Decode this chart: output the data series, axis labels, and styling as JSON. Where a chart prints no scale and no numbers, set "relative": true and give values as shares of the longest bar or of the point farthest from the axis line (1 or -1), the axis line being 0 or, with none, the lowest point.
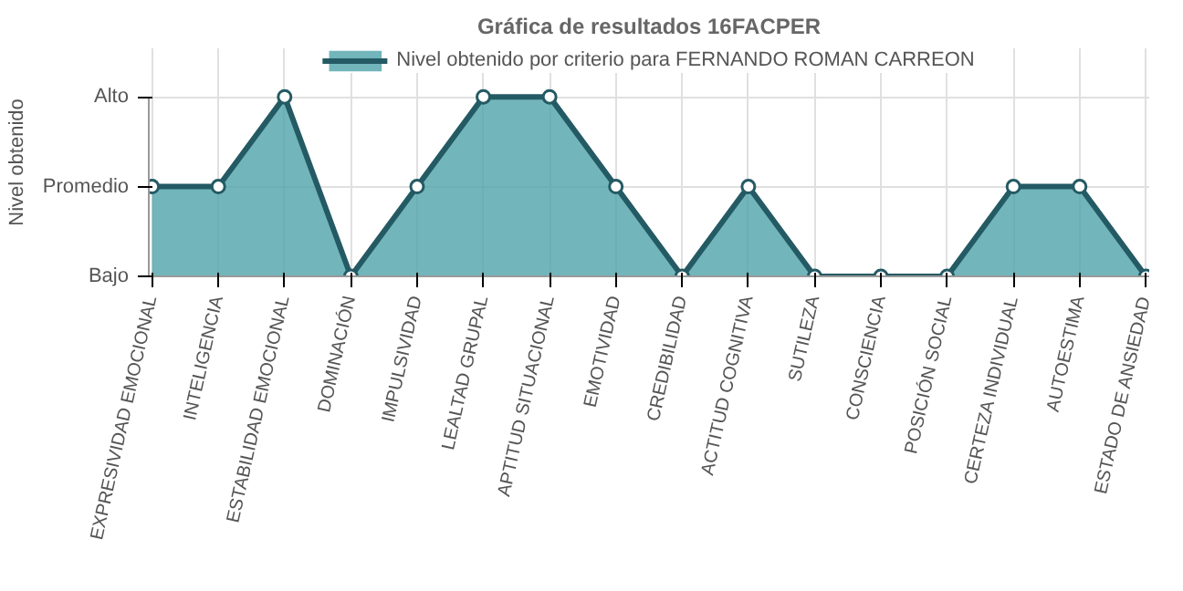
{
  "chart_data": {
    "type": "area",
    "title": "Gráfica de resultados 16FACPER",
    "ylabel": "Nivel obtenido",
    "categories": [
      "EXPRESIVIDAD EMOCIONAL",
      "INTELIGENCIA",
      "ESTABILIDAD EMOCIONAL",
      "DOMINACIÓN",
      "IMPULSIVIDAD",
      "LEALTAD GRUPAL",
      "APTITUD SITUACIONAL",
      "EMOTIVIDAD",
      "CREDIBILIDAD",
      "ACTITUD COGNITIVA",
      "SUTILEZA",
      "CONSCIENCIA",
      "POSICIÓN SOCIAL",
      "CERTEZA INDIVIDUAL",
      "AUTOESTIMA",
      "ESTADO DE ANSIEDAD"
    ],
    "y_categories": [
      "Alto",
      "Promedio",
      "Bajo"
    ],
    "series": [
      {
        "name": "Nivel obtenido por criterio para FERNANDO ROMAN CARREON",
        "color": "#245a64",
        "values": [
          0.5,
          0.5,
          1,
          0,
          0.5,
          1,
          1,
          0.5,
          0,
          0.5,
          0,
          0,
          0,
          0.5,
          0.5,
          0
        ]
      }
    ],
    "relative": true,
    "grid": true,
    "legend": "top",
    "marker": "circle"
  }
}
